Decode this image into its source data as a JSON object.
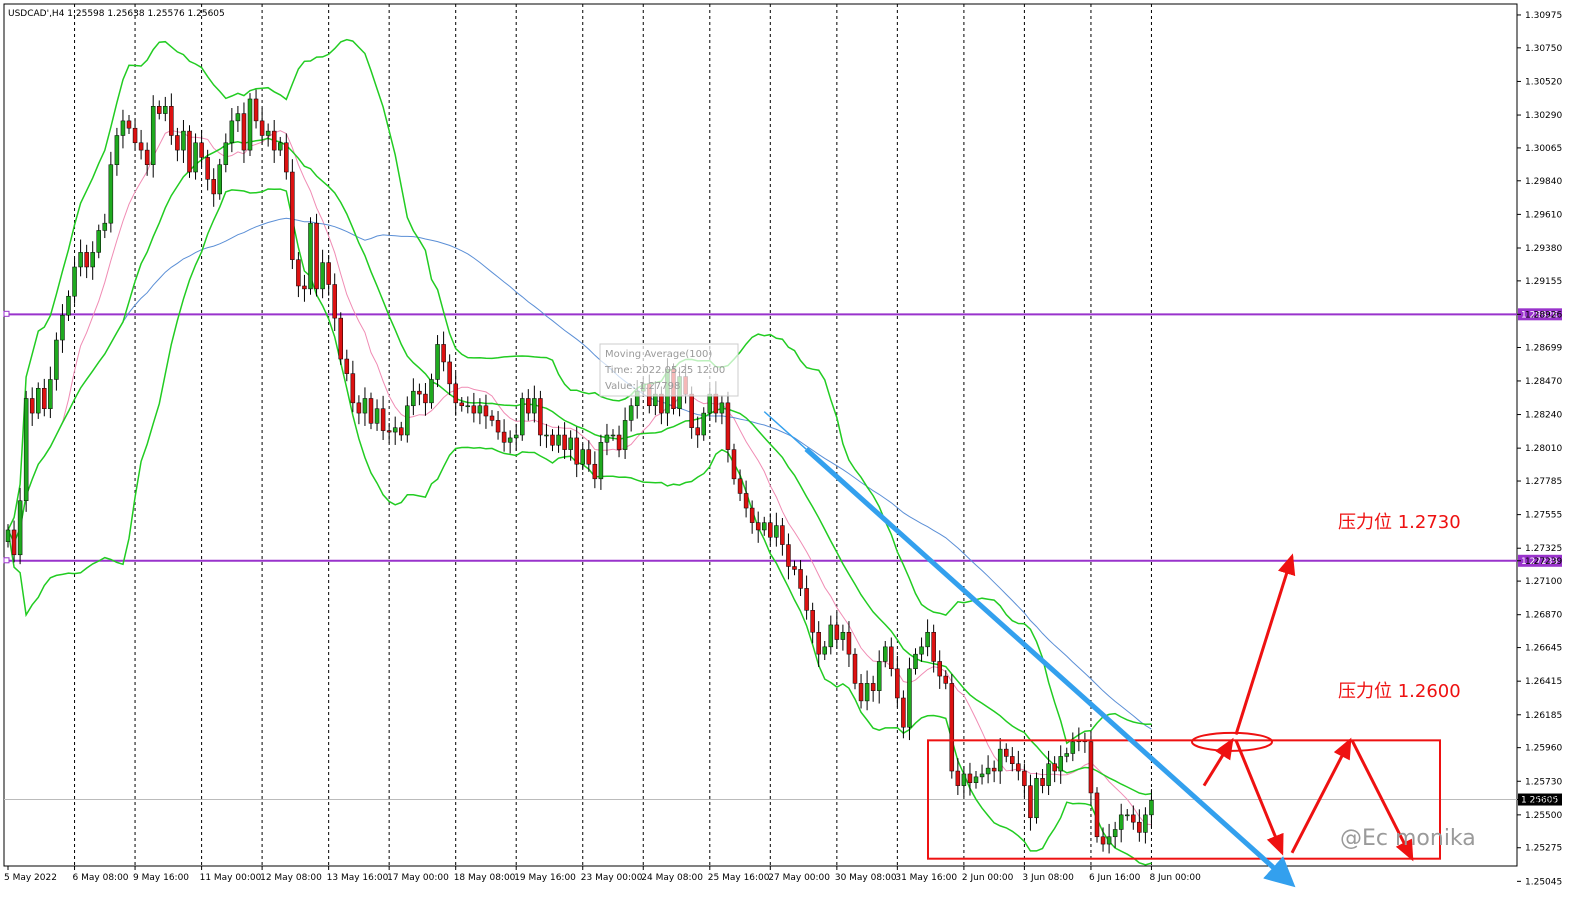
{
  "symbol_header": "USDCAD',H4  1.25598 1.25638 1.25576 1.25605",
  "watermark": "@Ec monika",
  "tooltip": {
    "line1": "Moving Average(100)",
    "line2": "Time: 2022.05.25 12:00",
    "line3": "Value: 1.27798"
  },
  "colors": {
    "bull_candle": "#1faa1f",
    "bear_candle": "#dd1111",
    "wick": "#000000",
    "bollinger": "#22cc22",
    "ma_short": "#f08cb4",
    "ma_100": "#5b8fd6",
    "support_resistance": "#9933cc",
    "trend_arrow": "#33a0ee",
    "annotation": "#ee1111",
    "price_label_bg": "#000000"
  },
  "chart_data": {
    "type": "candlestick",
    "symbol": "USDCAD'",
    "timeframe": "H4",
    "ohlc_header": {
      "open": 1.25598,
      "high": 1.25638,
      "low": 1.25576,
      "close": 1.25605
    },
    "ylim": [
      1.2515,
      1.3105
    ],
    "y_ticks": [
      "1.30975",
      "1.30750",
      "1.30520",
      "1.30290",
      "1.30065",
      "1.29840",
      "1.29610",
      "1.29380",
      "1.29155",
      "1.28926",
      "1.28699",
      "1.28470",
      "1.28240",
      "1.28010",
      "1.27785",
      "1.27555",
      "1.27325",
      "1.27239",
      "1.27100",
      "1.26870",
      "1.26645",
      "1.26415",
      "1.26185",
      "1.25960",
      "1.25730",
      "1.25605",
      "1.25500",
      "1.25275",
      "1.25045"
    ],
    "x_labels": [
      "5 May 2022",
      "6 May 08:00",
      "9 May 16:00",
      "11 May 00:00",
      "12 May 08:00",
      "13 May 16:00",
      "17 May 00:00",
      "18 May 08:00",
      "19 May 16:00",
      "23 May 00:00",
      "24 May 08:00",
      "25 May 16:00",
      "27 May 00:00",
      "30 May 08:00",
      "31 May 16:00",
      "2 Jun 00:00",
      "3 Jun 08:00",
      "6 Jun 16:00",
      "8 Jun 00:00"
    ],
    "current_price": {
      "value": 1.25605,
      "label": "1.25605"
    },
    "horizontal_lines": [
      {
        "value": 1.28926,
        "label": "1.28926"
      },
      {
        "value": 1.27239,
        "label": "1.27239"
      }
    ],
    "closes": [
      1.2745,
      1.2728,
      1.2765,
      1.2835,
      1.2825,
      1.2842,
      1.2828,
      1.2848,
      1.2875,
      1.2892,
      1.2905,
      1.2925,
      1.2935,
      1.2925,
      1.2935,
      1.295,
      1.2955,
      1.2995,
      1.3015,
      1.3025,
      1.302,
      1.301,
      1.3005,
      1.2995,
      1.3035,
      1.303,
      1.3035,
      1.3015,
      1.3005,
      1.3018,
      1.299,
      1.301,
      1.3,
      1.2985,
      1.2975,
      1.2995,
      1.301,
      1.3025,
      1.303,
      1.3005,
      1.304,
      1.3025,
      1.3015,
      1.3018,
      1.3005,
      1.301,
      1.299,
      1.293,
      1.2912,
      1.291,
      1.2955,
      1.291,
      1.2928,
      1.2913,
      1.289,
      1.2862,
      1.2852,
      1.2832,
      1.2825,
      1.2835,
      1.2818,
      1.2828,
      1.2813,
      1.2812,
      1.2815,
      1.281,
      1.283,
      1.284,
      1.2838,
      1.2832,
      1.2848,
      1.2872,
      1.286,
      1.2845,
      1.2832,
      1.283,
      1.283,
      1.2825,
      1.283,
      1.2823,
      1.282,
      1.2812,
      1.2805,
      1.2808,
      1.281,
      1.2835,
      1.2825,
      1.2835,
      1.281,
      1.281,
      1.2803,
      1.281,
      1.28,
      1.2808,
      1.279,
      1.28,
      1.279,
      1.278,
      1.2805,
      1.281,
      1.281,
      1.28,
      1.282,
      1.283,
      1.284,
      1.2845,
      1.283,
      1.2838,
      1.2825,
      1.2855,
      1.2828,
      1.285,
      1.2838,
      1.2815,
      1.281,
      1.2825,
      1.2838,
      1.2825,
      1.2832,
      1.28,
      1.278,
      1.277,
      1.276,
      1.275,
      1.2745,
      1.275,
      1.274,
      1.2748,
      1.2735,
      1.272,
      1.2718,
      1.2705,
      1.269,
      1.2675,
      1.266,
      1.2665,
      1.268,
      1.267,
      1.2675,
      1.266,
      1.264,
      1.2628,
      1.264,
      1.2635,
      1.2655,
      1.2665,
      1.265,
      1.263,
      1.261,
      1.265,
      1.266,
      1.2665,
      1.2675,
      1.2655,
      1.2645,
      1.264,
      1.258,
      1.257,
      1.2578,
      1.2572,
      1.2576,
      1.2578,
      1.2582,
      1.258,
      1.2595,
      1.259,
      1.2585,
      1.258,
      1.257,
      1.2548,
      1.2575,
      1.257,
      1.2585,
      1.258,
      1.259,
      1.2592,
      1.26,
      1.2601,
      1.26,
      1.2565,
      1.2535,
      1.253,
      1.2535,
      1.254,
      1.255,
      1.255,
      1.2545,
      1.2538,
      1.255,
      1.256
    ],
    "annotations": [
      {
        "text": "压力位 1.2730",
        "value": 1.273
      },
      {
        "text": "压力位 1.2600",
        "value": 1.26
      }
    ]
  }
}
